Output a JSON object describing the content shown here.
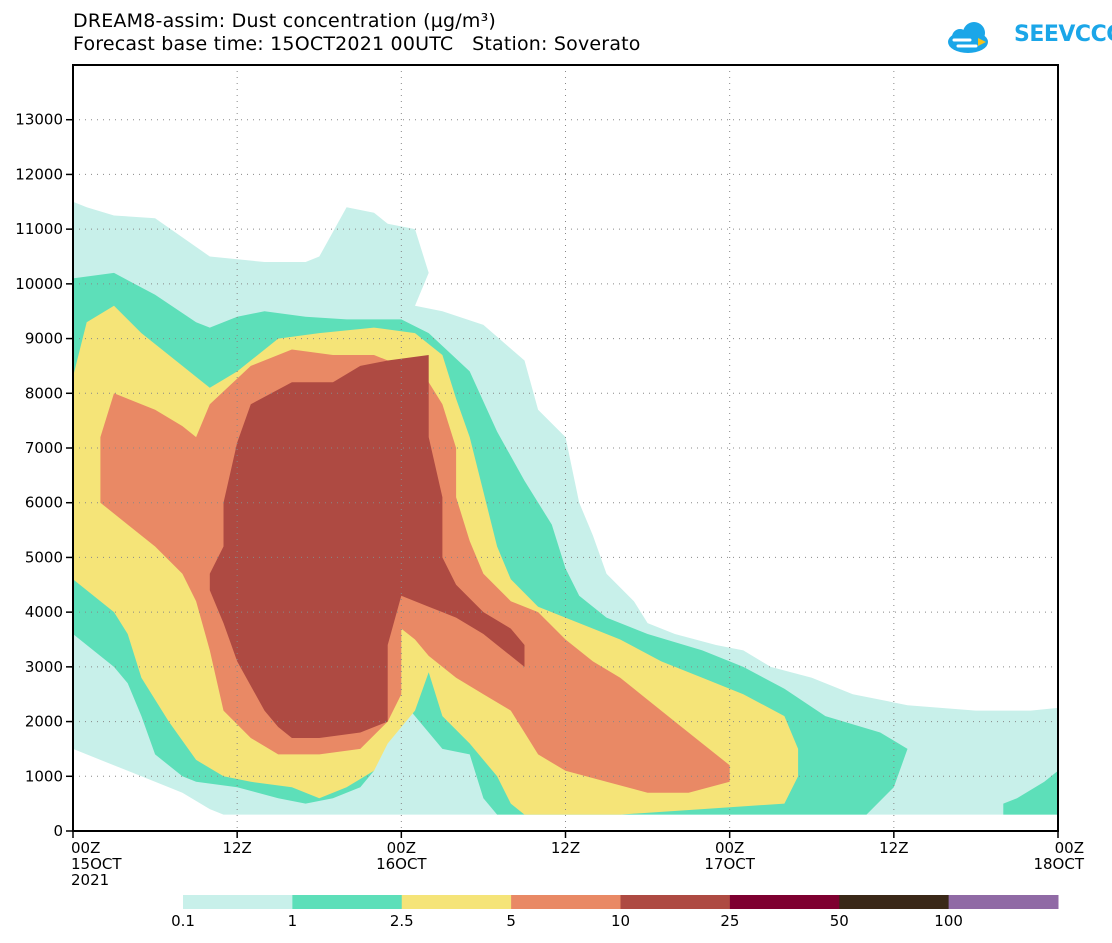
{
  "chart_data": {
    "type": "heatmap",
    "title_line1": "DREAM8-assim: Dust concentration (µg/m³)",
    "title_line2": "Forecast base time: 15OCT2021 00UTC   Station: Soverato",
    "logo_text": "SEEVCCC",
    "xlabel": "",
    "ylabel": "",
    "y_axis": {
      "min": 0,
      "max": 13000,
      "ticks": [
        0,
        1000,
        2000,
        3000,
        4000,
        5000,
        6000,
        7000,
        8000,
        9000,
        10000,
        11000,
        12000,
        13000
      ]
    },
    "x_axis": {
      "min_hours": 0,
      "max_hours": 72,
      "ticks": [
        {
          "h": 0,
          "label": "00Z",
          "sub": "15OCT",
          "sub2": "2021"
        },
        {
          "h": 12,
          "label": "12Z",
          "sub": "",
          "sub2": ""
        },
        {
          "h": 24,
          "label": "00Z",
          "sub": "16OCT",
          "sub2": ""
        },
        {
          "h": 36,
          "label": "12Z",
          "sub": "",
          "sub2": ""
        },
        {
          "h": 48,
          "label": "00Z",
          "sub": "17OCT",
          "sub2": ""
        },
        {
          "h": 60,
          "label": "12Z",
          "sub": "",
          "sub2": ""
        },
        {
          "h": 72,
          "label": "00Z",
          "sub": "18OCT",
          "sub2": ""
        }
      ]
    },
    "levels": [
      {
        "label": "0.1",
        "color": "#c8f0ea"
      },
      {
        "label": "1",
        "color": "#5ddfb9"
      },
      {
        "label": "2.5",
        "color": "#f5e478"
      },
      {
        "label": "5",
        "color": "#e98965"
      },
      {
        "label": "10",
        "color": "#ae4a42"
      },
      {
        "label": "25",
        "color": "#7e0030"
      },
      {
        "label": "50",
        "color": "#3a2818"
      },
      {
        "label": "100",
        "color": "#906aa5"
      }
    ],
    "contours": [
      {
        "level": 0,
        "points": [
          [
            0,
            11500
          ],
          [
            1,
            11400
          ],
          [
            3,
            11250
          ],
          [
            6,
            11200
          ],
          [
            10,
            10500
          ],
          [
            14,
            10400
          ],
          [
            17,
            10400
          ],
          [
            18,
            10500
          ],
          [
            20,
            11400
          ],
          [
            21,
            11350
          ],
          [
            22,
            11300
          ],
          [
            23,
            11100
          ],
          [
            25,
            11000
          ],
          [
            26,
            10200
          ],
          [
            25,
            9600
          ],
          [
            27,
            9500
          ],
          [
            30,
            9250
          ],
          [
            33,
            8600
          ],
          [
            34,
            7700
          ],
          [
            36,
            7200
          ],
          [
            37,
            6000
          ],
          [
            38,
            5400
          ],
          [
            39,
            4700
          ],
          [
            41,
            4200
          ],
          [
            42,
            3800
          ],
          [
            44,
            3600
          ],
          [
            47,
            3400
          ],
          [
            49,
            3300
          ],
          [
            51,
            3000
          ],
          [
            54,
            2800
          ],
          [
            57,
            2500
          ],
          [
            61,
            2300
          ],
          [
            66,
            2200
          ],
          [
            70,
            2200
          ],
          [
            72,
            2250
          ],
          [
            72,
            300
          ],
          [
            11,
            300
          ],
          [
            10,
            400
          ],
          [
            8,
            700
          ],
          [
            6,
            900
          ],
          [
            4,
            1100
          ],
          [
            2,
            1300
          ],
          [
            0,
            1500
          ]
        ]
      },
      {
        "level": 1,
        "points": [
          [
            0,
            10100
          ],
          [
            3,
            10200
          ],
          [
            6,
            9800
          ],
          [
            9,
            9300
          ],
          [
            10,
            9200
          ],
          [
            12,
            9400
          ],
          [
            14,
            9500
          ],
          [
            17,
            9400
          ],
          [
            20,
            9350
          ],
          [
            24,
            9350
          ],
          [
            26,
            9100
          ],
          [
            29,
            8400
          ],
          [
            31,
            7300
          ],
          [
            33,
            6400
          ],
          [
            35,
            5600
          ],
          [
            36,
            4800
          ],
          [
            37,
            4300
          ],
          [
            39,
            3900
          ],
          [
            42,
            3600
          ],
          [
            46,
            3300
          ],
          [
            49,
            3000
          ],
          [
            52,
            2600
          ],
          [
            55,
            2100
          ],
          [
            59,
            1800
          ],
          [
            61,
            1500
          ],
          [
            60,
            800
          ],
          [
            58,
            300
          ],
          [
            31,
            300
          ],
          [
            30,
            600
          ],
          [
            29,
            1400
          ],
          [
            27,
            1500
          ],
          [
            25,
            2100
          ],
          [
            24,
            2400
          ],
          [
            23,
            2000
          ],
          [
            22,
            1100
          ],
          [
            21,
            800
          ],
          [
            19,
            600
          ],
          [
            17,
            500
          ],
          [
            15,
            600
          ],
          [
            12,
            800
          ],
          [
            9,
            900
          ],
          [
            8,
            1000
          ],
          [
            6,
            1400
          ],
          [
            5,
            2100
          ],
          [
            4,
            2700
          ],
          [
            3,
            3000
          ],
          [
            1,
            3400
          ],
          [
            0,
            3600
          ]
        ]
      },
      {
        "level": 1,
        "points": [
          [
            68,
            300
          ],
          [
            72,
            300
          ],
          [
            72,
            1100
          ],
          [
            71,
            900
          ],
          [
            69,
            600
          ],
          [
            68,
            500
          ]
        ]
      },
      {
        "level": 2,
        "points": [
          [
            0,
            8300
          ],
          [
            1,
            9300
          ],
          [
            3,
            9600
          ],
          [
            5,
            9100
          ],
          [
            8,
            8500
          ],
          [
            10,
            8100
          ],
          [
            12,
            8400
          ],
          [
            15,
            9000
          ],
          [
            18,
            9100
          ],
          [
            22,
            9200
          ],
          [
            25,
            9100
          ],
          [
            27,
            8700
          ],
          [
            28,
            7900
          ],
          [
            29,
            7200
          ],
          [
            30,
            6200
          ],
          [
            31,
            5200
          ],
          [
            32,
            4600
          ],
          [
            34,
            4100
          ],
          [
            37,
            3800
          ],
          [
            40,
            3500
          ],
          [
            43,
            3100
          ],
          [
            46,
            2800
          ],
          [
            49,
            2500
          ],
          [
            52,
            2100
          ],
          [
            53,
            1500
          ],
          [
            53,
            1000
          ],
          [
            52,
            500
          ],
          [
            46,
            400
          ],
          [
            40,
            300
          ],
          [
            33,
            300
          ],
          [
            32,
            500
          ],
          [
            31,
            1000
          ],
          [
            29,
            1600
          ],
          [
            27,
            2100
          ],
          [
            26,
            2900
          ],
          [
            25,
            2200
          ],
          [
            23,
            1600
          ],
          [
            22,
            1100
          ],
          [
            20,
            800
          ],
          [
            18,
            600
          ],
          [
            16,
            800
          ],
          [
            13,
            900
          ],
          [
            11,
            1000
          ],
          [
            9,
            1300
          ],
          [
            7,
            2000
          ],
          [
            5,
            2800
          ],
          [
            4,
            3600
          ],
          [
            3,
            4000
          ],
          [
            1,
            4400
          ],
          [
            0,
            4600
          ]
        ]
      },
      {
        "level": 3,
        "points": [
          [
            2,
            7200
          ],
          [
            3,
            8000
          ],
          [
            6,
            7700
          ],
          [
            8,
            7400
          ],
          [
            9,
            7200
          ],
          [
            10,
            7800
          ],
          [
            13,
            8500
          ],
          [
            16,
            8800
          ],
          [
            19,
            8700
          ],
          [
            22,
            8700
          ],
          [
            24,
            8500
          ],
          [
            26,
            8200
          ],
          [
            27,
            7800
          ],
          [
            28,
            7000
          ],
          [
            28,
            6100
          ],
          [
            29,
            5300
          ],
          [
            30,
            4700
          ],
          [
            32,
            4200
          ],
          [
            34,
            4000
          ],
          [
            36,
            3500
          ],
          [
            38,
            3100
          ],
          [
            40,
            2800
          ],
          [
            42,
            2400
          ],
          [
            44,
            2000
          ],
          [
            46,
            1600
          ],
          [
            48,
            1200
          ],
          [
            48,
            900
          ],
          [
            45,
            700
          ],
          [
            42,
            700
          ],
          [
            39,
            900
          ],
          [
            36,
            1100
          ],
          [
            34,
            1400
          ],
          [
            33,
            1800
          ],
          [
            32,
            2200
          ],
          [
            30,
            2500
          ],
          [
            28,
            2800
          ],
          [
            26,
            3200
          ],
          [
            25,
            3500
          ],
          [
            24,
            3700
          ],
          [
            24,
            2500
          ],
          [
            23,
            2000
          ],
          [
            21,
            1500
          ],
          [
            18,
            1400
          ],
          [
            15,
            1400
          ],
          [
            13,
            1700
          ],
          [
            11,
            2200
          ],
          [
            10,
            3300
          ],
          [
            9,
            4200
          ],
          [
            8,
            4700
          ],
          [
            6,
            5200
          ],
          [
            4,
            5600
          ],
          [
            2,
            6000
          ]
        ]
      },
      {
        "level": 4,
        "points": [
          [
            12,
            7100
          ],
          [
            13,
            7800
          ],
          [
            16,
            8200
          ],
          [
            19,
            8200
          ],
          [
            21,
            8500
          ],
          [
            23,
            8600
          ],
          [
            26,
            8700
          ],
          [
            26,
            7200
          ],
          [
            27,
            6100
          ],
          [
            27,
            5000
          ],
          [
            28,
            4500
          ],
          [
            30,
            4000
          ],
          [
            32,
            3700
          ],
          [
            33,
            3400
          ],
          [
            33,
            3000
          ],
          [
            32,
            3200
          ],
          [
            31,
            3400
          ],
          [
            30,
            3600
          ],
          [
            28,
            3900
          ],
          [
            27,
            4000
          ],
          [
            26,
            4100
          ],
          [
            25,
            4200
          ],
          [
            24,
            4300
          ],
          [
            23,
            3400
          ],
          [
            23,
            2000
          ],
          [
            21,
            1800
          ],
          [
            18,
            1700
          ],
          [
            16,
            1700
          ],
          [
            15,
            1900
          ],
          [
            14,
            2200
          ],
          [
            12,
            3100
          ],
          [
            11,
            3800
          ],
          [
            10,
            4400
          ],
          [
            10,
            4700
          ],
          [
            11,
            5200
          ],
          [
            11,
            6000
          ]
        ]
      }
    ]
  }
}
